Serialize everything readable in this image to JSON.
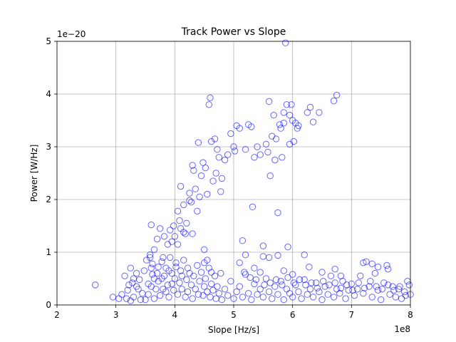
{
  "chart_data": {
    "type": "scatter",
    "title": "Track Power vs Slope",
    "xlabel": "Slope [Hz/s]",
    "ylabel": "Power [W/Hz]",
    "x_offset_label": "1e8",
    "y_offset_label": "1e−20",
    "xlim": [
      2,
      8
    ],
    "ylim": [
      0,
      5
    ],
    "x_ticks": [
      2,
      3,
      4,
      5,
      6,
      7,
      8
    ],
    "y_ticks": [
      0,
      1,
      2,
      3,
      4,
      5
    ],
    "x_tick_labels": [
      "2",
      "3",
      "4",
      "5",
      "6",
      "7",
      "8"
    ],
    "y_tick_labels": [
      "0",
      "1",
      "2",
      "3",
      "4",
      "5"
    ],
    "grid": true,
    "marker": "hollow circle",
    "color": "#0000ff",
    "x_unit_multiplier": "1e8",
    "y_unit_multiplier": "1e-20",
    "series": [
      {
        "points": [
          [
            2.65,
            0.38
          ],
          [
            2.95,
            0.15
          ],
          [
            3.05,
            0.12
          ],
          [
            3.1,
            0.2
          ],
          [
            3.15,
            0.55
          ],
          [
            3.2,
            0.28
          ],
          [
            3.25,
            0.7
          ],
          [
            3.28,
            0.42
          ],
          [
            3.3,
            0.15
          ],
          [
            3.35,
            0.6
          ],
          [
            3.38,
            0.3
          ],
          [
            3.4,
            0.48
          ],
          [
            3.45,
            0.22
          ],
          [
            3.48,
            0.65
          ],
          [
            3.5,
            0.1
          ],
          [
            3.52,
            0.85
          ],
          [
            3.55,
            0.4
          ],
          [
            3.58,
            0.95
          ],
          [
            3.6,
            1.52
          ],
          [
            3.62,
            0.58
          ],
          [
            3.65,
            1.05
          ],
          [
            3.68,
            0.3
          ],
          [
            3.7,
            1.25
          ],
          [
            3.72,
            0.72
          ],
          [
            3.75,
            1.45
          ],
          [
            3.78,
            0.5
          ],
          [
            3.8,
            0.9
          ],
          [
            3.82,
            1.3
          ],
          [
            3.85,
            0.25
          ],
          [
            3.88,
            1.15
          ],
          [
            3.9,
            0.65
          ],
          [
            3.92,
            1.42
          ],
          [
            3.95,
            0.4
          ],
          [
            3.98,
            1.5
          ],
          [
            4.0,
            1.3
          ],
          [
            4.02,
            0.8
          ],
          [
            4.05,
            1.78
          ],
          [
            4.08,
            1.6
          ],
          [
            4.1,
            2.25
          ],
          [
            4.12,
            0.55
          ],
          [
            4.15,
            1.9
          ],
          [
            4.18,
            1.35
          ],
          [
            4.2,
            1.55
          ],
          [
            4.22,
            0.7
          ],
          [
            4.25,
            2.12
          ],
          [
            4.28,
            1.95
          ],
          [
            4.3,
            2.65
          ],
          [
            4.32,
            2.55
          ],
          [
            4.35,
            2.2
          ],
          [
            4.38,
            1.78
          ],
          [
            4.4,
            3.08
          ],
          [
            4.42,
            2.05
          ],
          [
            4.45,
            2.45
          ],
          [
            4.48,
            2.7
          ],
          [
            4.5,
            1.05
          ],
          [
            4.52,
            2.6
          ],
          [
            4.55,
            2.1
          ],
          [
            4.58,
            3.8
          ],
          [
            4.6,
            3.93
          ],
          [
            4.62,
            3.1
          ],
          [
            4.65,
            2.35
          ],
          [
            4.68,
            3.15
          ],
          [
            4.7,
            2.5
          ],
          [
            4.72,
            2.95
          ],
          [
            4.75,
            2.8
          ],
          [
            4.78,
            2.15
          ],
          [
            4.8,
            2.4
          ],
          [
            4.85,
            2.75
          ],
          [
            4.9,
            2.85
          ],
          [
            4.95,
            3.25
          ],
          [
            5.0,
            3.0
          ],
          [
            5.02,
            2.92
          ],
          [
            5.05,
            3.4
          ],
          [
            5.1,
            3.35
          ],
          [
            5.15,
            1.22
          ],
          [
            5.2,
            2.95
          ],
          [
            5.25,
            3.42
          ],
          [
            5.3,
            3.38
          ],
          [
            5.32,
            1.86
          ],
          [
            5.35,
            2.8
          ],
          [
            5.4,
            3.0
          ],
          [
            5.45,
            2.85
          ],
          [
            5.5,
            1.12
          ],
          [
            5.55,
            3.05
          ],
          [
            5.58,
            2.9
          ],
          [
            5.6,
            3.86
          ],
          [
            5.62,
            2.45
          ],
          [
            5.65,
            3.2
          ],
          [
            5.68,
            3.6
          ],
          [
            5.7,
            2.75
          ],
          [
            5.72,
            3.15
          ],
          [
            5.75,
            1.75
          ],
          [
            5.78,
            3.42
          ],
          [
            5.8,
            3.35
          ],
          [
            5.82,
            2.8
          ],
          [
            5.85,
            3.65
          ],
          [
            5.88,
            4.97
          ],
          [
            5.9,
            3.8
          ],
          [
            5.92,
            1.1
          ],
          [
            5.95,
            3.05
          ],
          [
            5.98,
            3.8
          ],
          [
            6.0,
            3.5
          ],
          [
            6.02,
            3.1
          ],
          [
            6.05,
            3.45
          ],
          [
            6.08,
            3.35
          ],
          [
            6.1,
            3.4
          ],
          [
            6.25,
            3.65
          ],
          [
            6.3,
            3.75
          ],
          [
            6.35,
            3.47
          ],
          [
            6.45,
            3.65
          ],
          [
            6.7,
            3.87
          ],
          [
            6.75,
            3.98
          ],
          [
            5.85,
            3.45
          ],
          [
            5.95,
            3.6
          ],
          [
            4.25,
            1.98
          ],
          [
            4.15,
            1.38
          ],
          [
            4.05,
            1.15
          ],
          [
            3.95,
            1.2
          ],
          [
            4.1,
            1.45
          ],
          [
            4.3,
            1.35
          ],
          [
            3.55,
            0.2
          ],
          [
            3.6,
            0.35
          ],
          [
            3.62,
            0.78
          ],
          [
            3.65,
            0.12
          ],
          [
            3.7,
            0.6
          ],
          [
            3.72,
            0.45
          ],
          [
            3.75,
            0.18
          ],
          [
            3.78,
            0.82
          ],
          [
            3.8,
            0.3
          ],
          [
            3.82,
            0.55
          ],
          [
            3.85,
            0.7
          ],
          [
            3.88,
            0.38
          ],
          [
            3.9,
            0.15
          ],
          [
            3.92,
            0.9
          ],
          [
            3.95,
            0.6
          ],
          [
            3.98,
            0.28
          ],
          [
            4.0,
            0.5
          ],
          [
            4.02,
            0.72
          ],
          [
            4.05,
            0.2
          ],
          [
            4.08,
            0.42
          ],
          [
            4.1,
            0.65
          ],
          [
            4.12,
            0.3
          ],
          [
            4.15,
            0.85
          ],
          [
            4.18,
            0.15
          ],
          [
            4.2,
            0.48
          ],
          [
            4.22,
            0.25
          ],
          [
            4.25,
            0.6
          ],
          [
            4.28,
            0.38
          ],
          [
            4.3,
            0.12
          ],
          [
            4.32,
            0.55
          ],
          [
            4.35,
            0.3
          ],
          [
            4.38,
            0.75
          ],
          [
            4.4,
            0.2
          ],
          [
            4.42,
            0.45
          ],
          [
            4.45,
            0.62
          ],
          [
            4.48,
            0.18
          ],
          [
            4.5,
            0.35
          ],
          [
            4.52,
            0.5
          ],
          [
            4.55,
            0.25
          ],
          [
            4.58,
            0.7
          ],
          [
            4.6,
            0.15
          ],
          [
            4.62,
            0.4
          ],
          [
            4.65,
            0.28
          ],
          [
            4.68,
            0.55
          ],
          [
            4.7,
            0.12
          ],
          [
            4.72,
            0.35
          ],
          [
            4.75,
            0.22
          ],
          [
            4.78,
            0.6
          ],
          [
            4.8,
            0.1
          ],
          [
            4.85,
            0.3
          ],
          [
            4.9,
            0.18
          ],
          [
            4.95,
            0.45
          ],
          [
            5.0,
            0.12
          ],
          [
            5.05,
            0.25
          ],
          [
            5.1,
            0.35
          ],
          [
            5.15,
            0.15
          ],
          [
            5.2,
            0.58
          ],
          [
            5.25,
            0.22
          ],
          [
            5.3,
            0.1
          ],
          [
            5.35,
            0.4
          ],
          [
            5.4,
            0.2
          ],
          [
            5.45,
            0.3
          ],
          [
            5.5,
            0.15
          ],
          [
            5.55,
            0.5
          ],
          [
            5.6,
            0.25
          ],
          [
            5.65,
            0.12
          ],
          [
            5.7,
            0.35
          ],
          [
            5.75,
            0.2
          ],
          [
            5.8,
            0.45
          ],
          [
            5.85,
            0.1
          ],
          [
            5.9,
            0.3
          ],
          [
            5.95,
            0.22
          ],
          [
            6.0,
            0.15
          ],
          [
            6.05,
            0.38
          ],
          [
            6.1,
            0.25
          ],
          [
            6.15,
            0.12
          ],
          [
            6.2,
            0.48
          ],
          [
            6.25,
            0.2
          ],
          [
            6.3,
            0.3
          ],
          [
            6.35,
            0.15
          ],
          [
            6.4,
            0.42
          ],
          [
            6.45,
            0.25
          ],
          [
            6.5,
            0.1
          ],
          [
            6.55,
            0.35
          ],
          [
            6.6,
            0.2
          ],
          [
            6.65,
            0.55
          ],
          [
            6.7,
            0.15
          ],
          [
            6.75,
            0.3
          ],
          [
            6.8,
            0.22
          ],
          [
            6.85,
            0.45
          ],
          [
            6.9,
            0.12
          ],
          [
            6.95,
            0.28
          ],
          [
            7.0,
            0.4
          ],
          [
            7.05,
            0.18
          ],
          [
            7.1,
            0.3
          ],
          [
            7.15,
            0.55
          ],
          [
            7.2,
            0.22
          ],
          [
            7.25,
            0.82
          ],
          [
            7.3,
            0.35
          ],
          [
            7.35,
            0.15
          ],
          [
            7.4,
            0.6
          ],
          [
            7.45,
            0.28
          ],
          [
            7.5,
            0.1
          ],
          [
            7.55,
            0.42
          ],
          [
            7.6,
            0.75
          ],
          [
            7.65,
            0.2
          ],
          [
            7.7,
            0.35
          ],
          [
            7.75,
            0.15
          ],
          [
            7.8,
            0.3
          ],
          [
            7.85,
            0.12
          ],
          [
            7.9,
            0.25
          ],
          [
            7.95,
            0.45
          ],
          [
            8.0,
            0.2
          ],
          [
            5.2,
            0.95
          ],
          [
            5.5,
            0.92
          ],
          [
            5.45,
            0.62
          ],
          [
            5.6,
            0.9
          ],
          [
            5.75,
            0.94
          ],
          [
            6.2,
            0.95
          ],
          [
            6.28,
            0.72
          ],
          [
            6.72,
            0.68
          ],
          [
            7.2,
            0.8
          ],
          [
            7.35,
            0.78
          ],
          [
            7.45,
            0.72
          ],
          [
            7.62,
            0.68
          ],
          [
            5.1,
            0.8
          ],
          [
            5.35,
            0.7
          ],
          [
            5.85,
            0.65
          ],
          [
            6.0,
            0.58
          ],
          [
            6.5,
            0.62
          ],
          [
            6.82,
            0.55
          ],
          [
            4.5,
            0.8
          ],
          [
            4.55,
            0.85
          ],
          [
            4.62,
            0.62
          ],
          [
            3.58,
            0.9
          ],
          [
            3.6,
            0.7
          ],
          [
            3.65,
            0.5
          ],
          [
            3.3,
            0.5
          ],
          [
            3.35,
            0.35
          ],
          [
            3.22,
            0.38
          ],
          [
            3.18,
            0.12
          ],
          [
            3.25,
            0.08
          ],
          [
            3.42,
            0.1
          ],
          [
            5.18,
            0.62
          ],
          [
            5.28,
            0.52
          ],
          [
            5.38,
            0.48
          ],
          [
            5.52,
            0.38
          ],
          [
            5.62,
            0.42
          ],
          [
            5.72,
            0.48
          ],
          [
            5.82,
            0.38
          ],
          [
            5.92,
            0.52
          ],
          [
            6.02,
            0.42
          ],
          [
            6.12,
            0.48
          ],
          [
            6.22,
            0.38
          ],
          [
            6.32,
            0.42
          ],
          [
            6.42,
            0.32
          ],
          [
            6.52,
            0.45
          ],
          [
            6.62,
            0.38
          ],
          [
            6.72,
            0.42
          ],
          [
            6.82,
            0.32
          ],
          [
            6.92,
            0.38
          ],
          [
            7.02,
            0.28
          ],
          [
            7.12,
            0.42
          ],
          [
            7.22,
            0.32
          ],
          [
            7.32,
            0.45
          ],
          [
            7.42,
            0.35
          ],
          [
            7.52,
            0.3
          ],
          [
            7.62,
            0.38
          ],
          [
            7.72,
            0.28
          ],
          [
            7.82,
            0.35
          ],
          [
            7.92,
            0.18
          ],
          [
            7.98,
            0.38
          ]
        ]
      }
    ]
  }
}
